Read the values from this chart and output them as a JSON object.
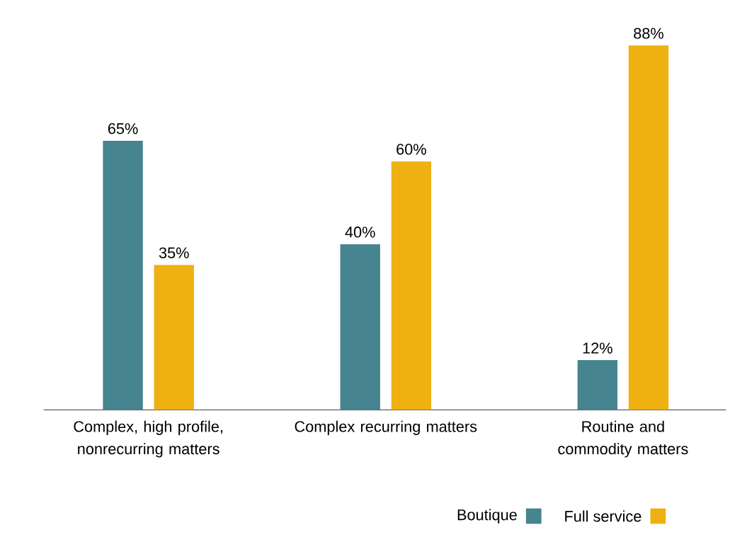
{
  "chart_data": {
    "type": "bar",
    "categories": [
      "Complex, high profile, nonrecurring matters",
      "Complex recurring matters",
      "Routine and commodity matters"
    ],
    "series": [
      {
        "name": "Boutique",
        "color": "#46848f",
        "values": [
          65,
          40,
          12
        ],
        "value_labels": [
          "65%",
          "40%",
          "12%"
        ]
      },
      {
        "name": "Full service",
        "color": "#eeb111",
        "values": [
          35,
          60,
          88
        ],
        "value_labels": [
          "35%",
          "60%",
          "88%"
        ]
      }
    ],
    "legend": "bottom right"
  }
}
